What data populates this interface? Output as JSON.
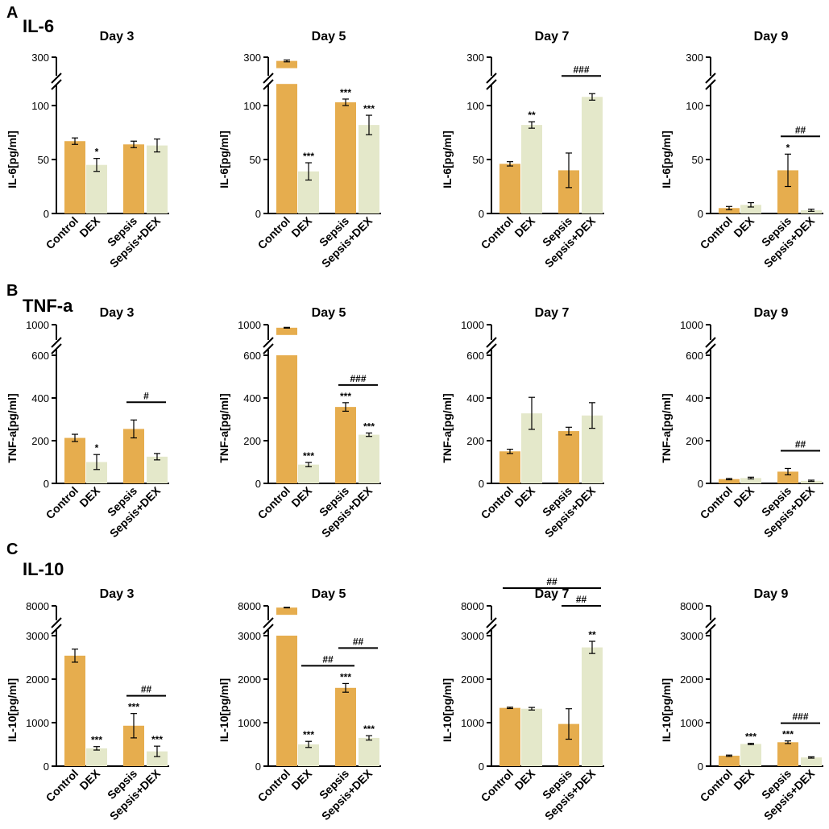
{
  "colors": {
    "orange": "#E6AD4E",
    "green": "#E4E8CA",
    "axis": "#000000"
  },
  "groups": [
    "Control",
    "DEX",
    "Sepsis",
    "Sepsis+DEX"
  ],
  "rows": [
    {
      "letter": "A",
      "title": "IL-6",
      "ylabel": "IL-6[pg/ml]",
      "ticks_lower": [
        "0",
        "50",
        "100"
      ],
      "tick_values": [
        0,
        50,
        100
      ],
      "lower_max": 100,
      "lower_plot_max": 120,
      "top_tick_label": "300",
      "top_tick_value": 300
    },
    {
      "letter": "B",
      "title": "TNF-a",
      "ylabel": "TNF-a[pg/ml]",
      "ticks_lower": [
        "0",
        "200",
        "400",
        "600"
      ],
      "tick_values": [
        0,
        200,
        400,
        600
      ],
      "lower_max": 600,
      "lower_plot_max": 600,
      "top_tick_label": "1000",
      "top_tick_value": 1000
    },
    {
      "letter": "C",
      "title": "IL-10",
      "ylabel": "IL-10[pg/ml]",
      "ticks_lower": [
        "0",
        "1000",
        "2000",
        "3000"
      ],
      "tick_values": [
        0,
        1000,
        2000,
        3000
      ],
      "lower_max": 3000,
      "lower_plot_max": 3000,
      "top_tick_label": "8000",
      "top_tick_value": 8000
    }
  ],
  "chart_data": [
    {
      "type": "bar",
      "row": 0,
      "title": "Day 3",
      "ylabel": "IL-6[pg/ml]",
      "categories": [
        "Control",
        "DEX",
        "Sepsis",
        "Sepsis+DEX"
      ],
      "values": [
        67,
        45,
        64,
        63
      ],
      "errors": [
        3,
        6,
        3,
        6
      ],
      "stars": [
        "",
        "*",
        "",
        ""
      ],
      "brackets": []
    },
    {
      "type": "bar",
      "row": 0,
      "title": "Day 5",
      "ylabel": "IL-6[pg/ml]",
      "categories": [
        "Control",
        "DEX",
        "Sepsis",
        "Sepsis+DEX"
      ],
      "values": [
        260,
        39,
        103,
        82
      ],
      "errors": [
        10,
        8,
        3,
        9
      ],
      "stars": [
        "",
        "***",
        "***",
        "***"
      ],
      "brackets": []
    },
    {
      "type": "bar",
      "row": 0,
      "title": "Day 7",
      "ylabel": "IL-6[pg/ml]",
      "categories": [
        "Control",
        "DEX",
        "Sepsis",
        "Sepsis+DEX"
      ],
      "values": [
        46,
        82,
        40,
        108
      ],
      "errors": [
        2,
        3,
        16,
        3
      ],
      "stars": [
        "",
        "**",
        "",
        ""
      ],
      "brackets": [
        {
          "from": 2,
          "to": 3,
          "label": "###",
          "level": 0
        }
      ]
    },
    {
      "type": "bar",
      "row": 0,
      "title": "Day 9",
      "ylabel": "IL-6[pg/ml]",
      "categories": [
        "Control",
        "DEX",
        "Sepsis",
        "Sepsis+DEX"
      ],
      "values": [
        5,
        8,
        40,
        3
      ],
      "errors": [
        1.5,
        2,
        15,
        1
      ],
      "stars": [
        "",
        "",
        "*",
        ""
      ],
      "brackets": [
        {
          "from": 2,
          "to": 3,
          "label": "##",
          "level": 0
        }
      ]
    },
    {
      "type": "bar",
      "row": 1,
      "title": "Day 3",
      "ylabel": "TNF-a[pg/ml]",
      "categories": [
        "Control",
        "DEX",
        "Sepsis",
        "Sepsis+DEX"
      ],
      "values": [
        213,
        100,
        255,
        125
      ],
      "errors": [
        17,
        35,
        42,
        15
      ],
      "stars": [
        "",
        "*",
        "",
        ""
      ],
      "brackets": [
        {
          "from": 2,
          "to": 3,
          "label": "#",
          "level": 0
        }
      ]
    },
    {
      "type": "bar",
      "row": 1,
      "title": "Day 5",
      "ylabel": "TNF-a[pg/ml]",
      "categories": [
        "Control",
        "DEX",
        "Sepsis",
        "Sepsis+DEX"
      ],
      "values": [
        920,
        88,
        358,
        228
      ],
      "errors": [
        10,
        10,
        20,
        8
      ],
      "stars": [
        "",
        "***",
        "***",
        "***"
      ],
      "brackets": [
        {
          "from": 2,
          "to": 3,
          "label": "###",
          "level": 0
        }
      ]
    },
    {
      "type": "bar",
      "row": 1,
      "title": "Day 7",
      "ylabel": "TNF-a[pg/ml]",
      "categories": [
        "Control",
        "DEX",
        "Sepsis",
        "Sepsis+DEX"
      ],
      "values": [
        150,
        328,
        245,
        318
      ],
      "errors": [
        10,
        75,
        18,
        60
      ],
      "stars": [
        "",
        "",
        "",
        ""
      ],
      "brackets": []
    },
    {
      "type": "bar",
      "row": 1,
      "title": "Day 9",
      "ylabel": "TNF-a[pg/ml]",
      "categories": [
        "Control",
        "DEX",
        "Sepsis",
        "Sepsis+DEX"
      ],
      "values": [
        20,
        25,
        55,
        12
      ],
      "errors": [
        3,
        4,
        15,
        3
      ],
      "stars": [
        "",
        "",
        "",
        ""
      ],
      "brackets": [
        {
          "from": 2,
          "to": 3,
          "label": "##",
          "level": 0
        }
      ]
    },
    {
      "type": "bar",
      "row": 2,
      "title": "Day 3",
      "ylabel": "IL-10[pg/ml]",
      "categories": [
        "Control",
        "DEX",
        "Sepsis",
        "Sepsis+DEX"
      ],
      "values": [
        2540,
        410,
        930,
        340
      ],
      "errors": [
        150,
        40,
        280,
        120
      ],
      "stars": [
        "",
        "***",
        "***",
        "***"
      ],
      "brackets": [
        {
          "from": 2,
          "to": 3,
          "label": "##",
          "level": 0
        }
      ]
    },
    {
      "type": "bar",
      "row": 2,
      "title": "Day 5",
      "ylabel": "IL-10[pg/ml]",
      "categories": [
        "Control",
        "DEX",
        "Sepsis",
        "Sepsis+DEX"
      ],
      "values": [
        7400,
        500,
        1800,
        650
      ],
      "errors": [
        100,
        70,
        100,
        50
      ],
      "stars": [
        "",
        "***",
        "***",
        "***"
      ],
      "brackets": [
        {
          "from": 1,
          "to": 2,
          "label": "##",
          "level": 0
        },
        {
          "from": 2,
          "to": 3,
          "label": "##",
          "level": 1
        }
      ]
    },
    {
      "type": "bar",
      "row": 2,
      "title": "Day 7",
      "ylabel": "IL-10[pg/ml]",
      "categories": [
        "Control",
        "DEX",
        "Sepsis",
        "Sepsis+DEX"
      ],
      "values": [
        1340,
        1320,
        970,
        2730
      ],
      "errors": [
        15,
        30,
        350,
        140
      ],
      "stars": [
        "",
        "",
        "",
        "**"
      ],
      "brackets": [
        {
          "from": 0,
          "to": 3,
          "label": "##",
          "level": 2
        },
        {
          "from": 2,
          "to": 3,
          "label": "##",
          "level": 1
        }
      ]
    },
    {
      "type": "bar",
      "row": 2,
      "title": "Day 9",
      "ylabel": "IL-10[pg/ml]",
      "categories": [
        "Control",
        "DEX",
        "Sepsis",
        "Sepsis+DEX"
      ],
      "values": [
        240,
        510,
        550,
        200
      ],
      "errors": [
        15,
        15,
        30,
        15
      ],
      "stars": [
        "",
        "***",
        "***",
        ""
      ],
      "brackets": [
        {
          "from": 2,
          "to": 3,
          "label": "###",
          "level": 0
        }
      ]
    }
  ]
}
